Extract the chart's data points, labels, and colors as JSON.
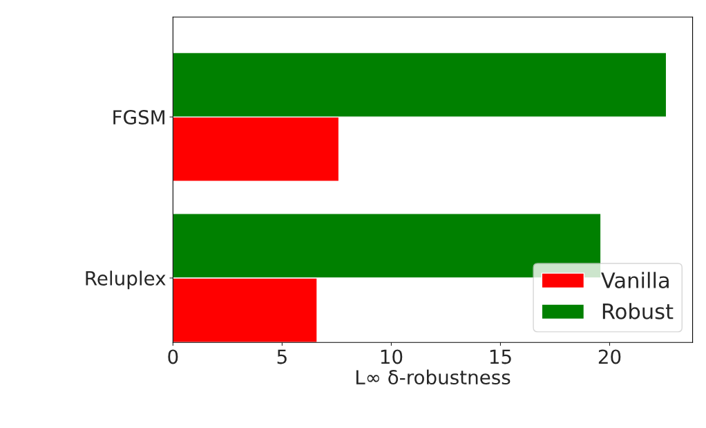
{
  "chart_data": {
    "type": "bar",
    "orientation": "horizontal",
    "categories": [
      "FGSM",
      "Reluplex"
    ],
    "xlabel": "L∞ δ-robustness",
    "series": [
      {
        "name": "Vanilla",
        "color": "#ff0000",
        "values": [
          7.6,
          6.6
        ]
      },
      {
        "name": "Robust",
        "color": "#008000",
        "values": [
          22.6,
          19.6
        ]
      }
    ],
    "xlim": [
      0,
      23.8
    ],
    "xticks": [
      0,
      5,
      10,
      15,
      20
    ],
    "legend": "bottom right",
    "grid": false
  }
}
